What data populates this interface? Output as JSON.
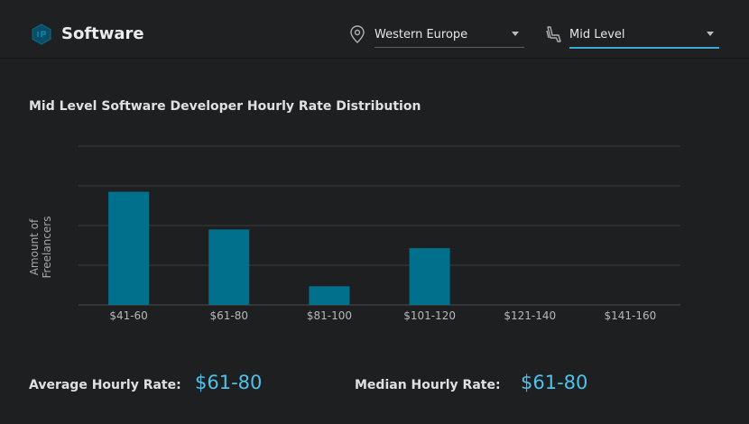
{
  "header": {
    "title": "Software",
    "location_value": "Western Europe",
    "level_value": "Mid Level"
  },
  "chart_data": {
    "type": "bar",
    "title": "Mid Level Software Developer Hourly Rate Distribution",
    "ylabel": "Amount of Freelancers",
    "xlabel": "",
    "categories": [
      "$41-60",
      "$61-80",
      "$81-100",
      "$101-120",
      "$121-140",
      "$141-160"
    ],
    "values": [
      2.85,
      1.9,
      0.47,
      1.43,
      0,
      0
    ],
    "ylim": [
      0,
      4
    ],
    "grid": true,
    "bar_color": "#00708d"
  },
  "stats": {
    "average_label": "Average Hourly Rate:",
    "average_value": "$61-80",
    "median_label": "Median Hourly Rate:",
    "median_value": "$61-80"
  },
  "colors": {
    "accent": "#4fc1ea",
    "bar": "#00708d",
    "background": "#1e1f21"
  }
}
